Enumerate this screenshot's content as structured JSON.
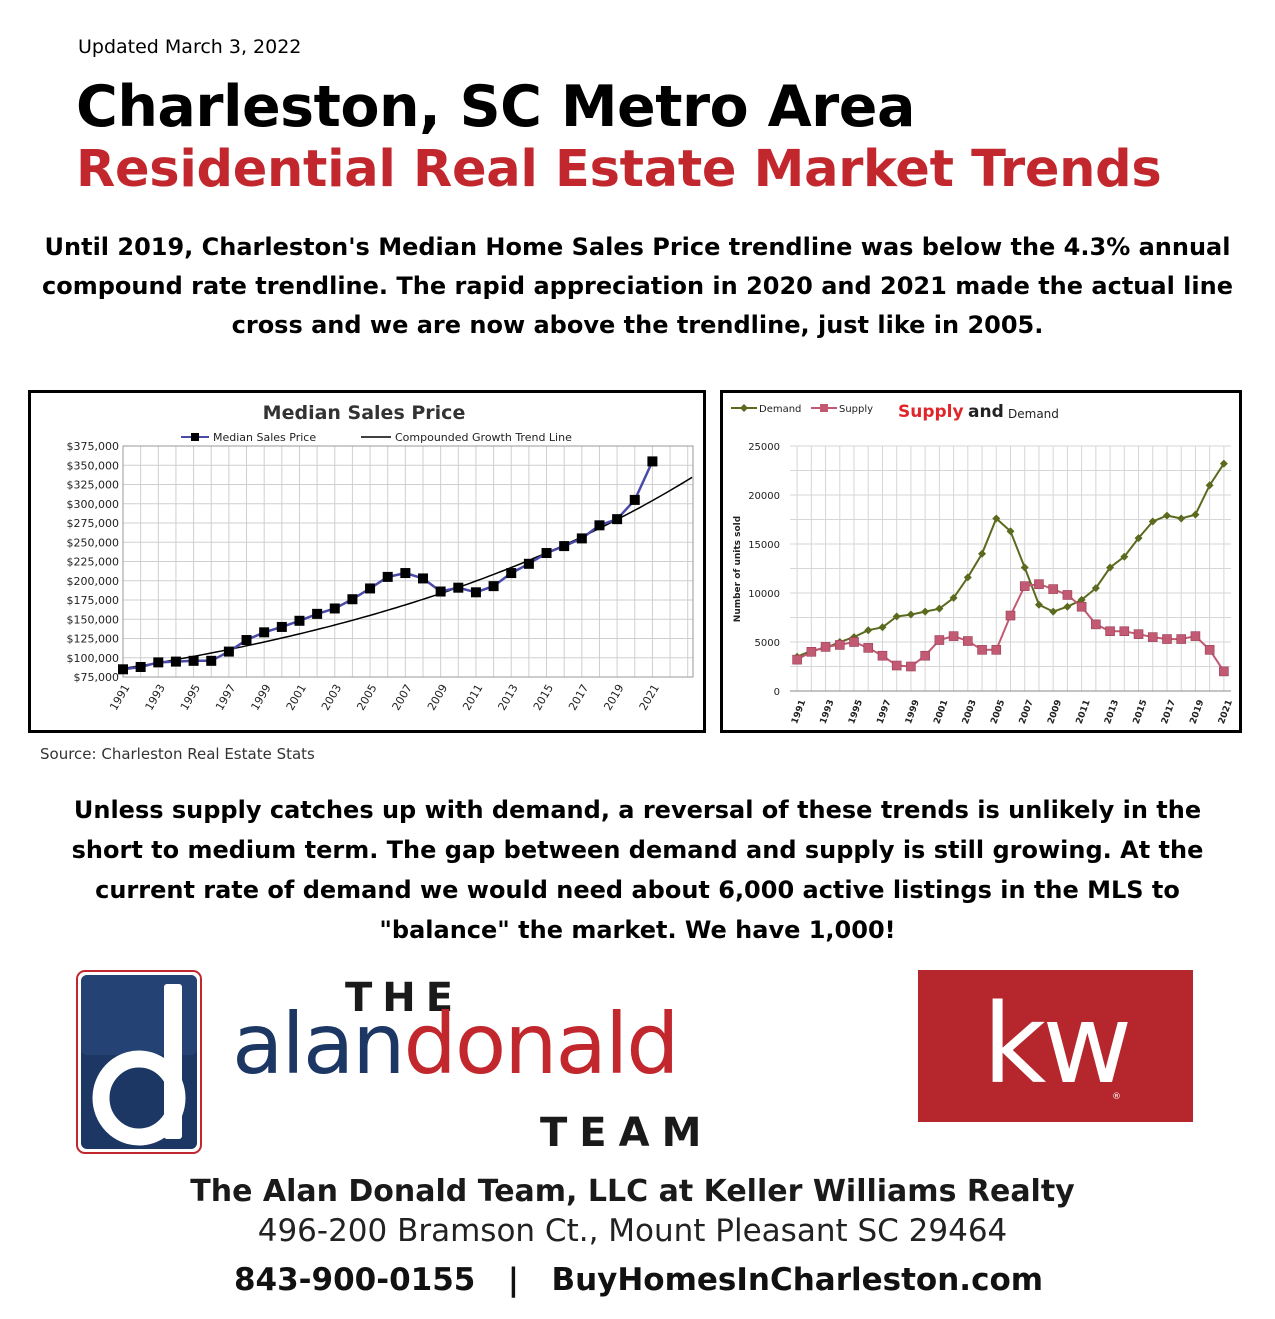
{
  "header": {
    "updated": "Updated March 3, 2022",
    "title_line1": "Charleston, SC Metro Area",
    "title_line2": "Residential Real Estate Market Trends"
  },
  "intro_text": "Until 2019, Charleston's Median Home Sales Price trendline was below the 4.3% annual compound rate trendline. The rapid appreciation in 2020 and 2021 made the actual line cross and we are now above the trendline, just like in 2005.",
  "source_text": "Source: Charleston Real Estate Stats",
  "body_text": "Unless supply catches up with demand, a reversal of these trends is unlikely in the short to medium term. The gap between demand and supply is still growing. At the current rate of demand we would need about 6,000 active listings in the MLS to \"balance\" the market. We have 1,000!",
  "brand": {
    "the": "THE",
    "alan": "alan",
    "donald": "donald",
    "team": "TEAM",
    "kw": "kw",
    "kw_reg": "®",
    "colors": {
      "navy": "#1c3764",
      "red": "#c1272d",
      "kw_red": "#b5272d"
    }
  },
  "footer": {
    "company": "The Alan Donald Team, LLC at Keller Williams Realty",
    "address": "496-200 Bramson Ct., Mount Pleasant SC 29464",
    "contact": "843-900-0155   |   BuyHomesInCharleston.com"
  },
  "chart_data": [
    {
      "type": "line",
      "title": "Median Sales Price",
      "legend_placement": "top",
      "grid": true,
      "x": [
        1991,
        1992,
        1993,
        1994,
        1995,
        1996,
        1997,
        1998,
        1999,
        2000,
        2001,
        2002,
        2003,
        2004,
        2005,
        2006,
        2007,
        2008,
        2009,
        2010,
        2011,
        2012,
        2013,
        2014,
        2015,
        2016,
        2017,
        2018,
        2019,
        2020,
        2021
      ],
      "x_tick_labels": [
        "1991",
        "1993",
        "1995",
        "1997",
        "1999",
        "2001",
        "2003",
        "2005",
        "2007",
        "2009",
        "2011",
        "2013",
        "2015",
        "2017",
        "2019",
        "2021"
      ],
      "y_tick_labels": [
        "$75,000",
        "$100,000",
        "$125,000",
        "$150,000",
        "$175,000",
        "$200,000",
        "$225,000",
        "$250,000",
        "$275,000",
        "$300,000",
        "$325,000",
        "$350,000",
        "$375,000"
      ],
      "ylim": [
        75000,
        375000
      ],
      "series": [
        {
          "name": "Median Sales Price",
          "color": "#4a4aa8",
          "marker": "square",
          "values": [
            85000,
            88000,
            94000,
            95000,
            96000,
            96000,
            108000,
            123000,
            133000,
            140000,
            148000,
            157000,
            164000,
            176000,
            190000,
            205000,
            210000,
            203000,
            186000,
            191000,
            185000,
            193000,
            210000,
            222000,
            236000,
            245000,
            255000,
            272000,
            280000,
            305000,
            355000
          ]
        },
        {
          "name": "Compounded Growth Trend Line",
          "color": "#000000",
          "marker": "none",
          "x_extent": [
            1991,
            2023.3
          ],
          "start_value": 86000,
          "annual_rate": 0.043
        }
      ]
    },
    {
      "type": "line",
      "title": "Supply and Demand",
      "title_parts": [
        "Supply",
        "and",
        "Demand"
      ],
      "legend_placement": "top-left",
      "grid": true,
      "ylabel": "Number of units sold",
      "x": [
        1991,
        1992,
        1993,
        1994,
        1995,
        1996,
        1997,
        1998,
        1999,
        2000,
        2001,
        2002,
        2003,
        2004,
        2005,
        2006,
        2007,
        2008,
        2009,
        2010,
        2011,
        2012,
        2013,
        2014,
        2015,
        2016,
        2017,
        2018,
        2019,
        2020,
        2021
      ],
      "x_tick_labels": [
        "1991",
        "1993",
        "1995",
        "1997",
        "1999",
        "2001",
        "2003",
        "2005",
        "2007",
        "2009",
        "2011",
        "2013",
        "2015",
        "2017",
        "2019",
        "2021"
      ],
      "y_tick_labels": [
        "0",
        "5000",
        "10000",
        "15000",
        "20000",
        "25000"
      ],
      "ylim": [
        0,
        25000
      ],
      "series": [
        {
          "name": "Demand",
          "color": "#5a6a1e",
          "marker": "diamond",
          "values": [
            3500,
            4100,
            4400,
            5000,
            5500,
            6200,
            6500,
            7600,
            7800,
            8100,
            8400,
            9500,
            11600,
            14000,
            17600,
            16300,
            12600,
            8800,
            8100,
            8600,
            9300,
            10500,
            12600,
            13700,
            15600,
            17300,
            17900,
            17600,
            18000,
            21000,
            23200
          ]
        },
        {
          "name": "Supply",
          "color": "#c25a74",
          "marker": "square",
          "values": [
            3200,
            4000,
            4500,
            4700,
            5000,
            4400,
            3600,
            2600,
            2500,
            3600,
            5200,
            5600,
            5100,
            4200,
            4200,
            7700,
            10700,
            10900,
            10400,
            9800,
            8600,
            6800,
            6100,
            6100,
            5800,
            5500,
            5300,
            5300,
            5600,
            4200,
            2000
          ]
        }
      ]
    }
  ]
}
